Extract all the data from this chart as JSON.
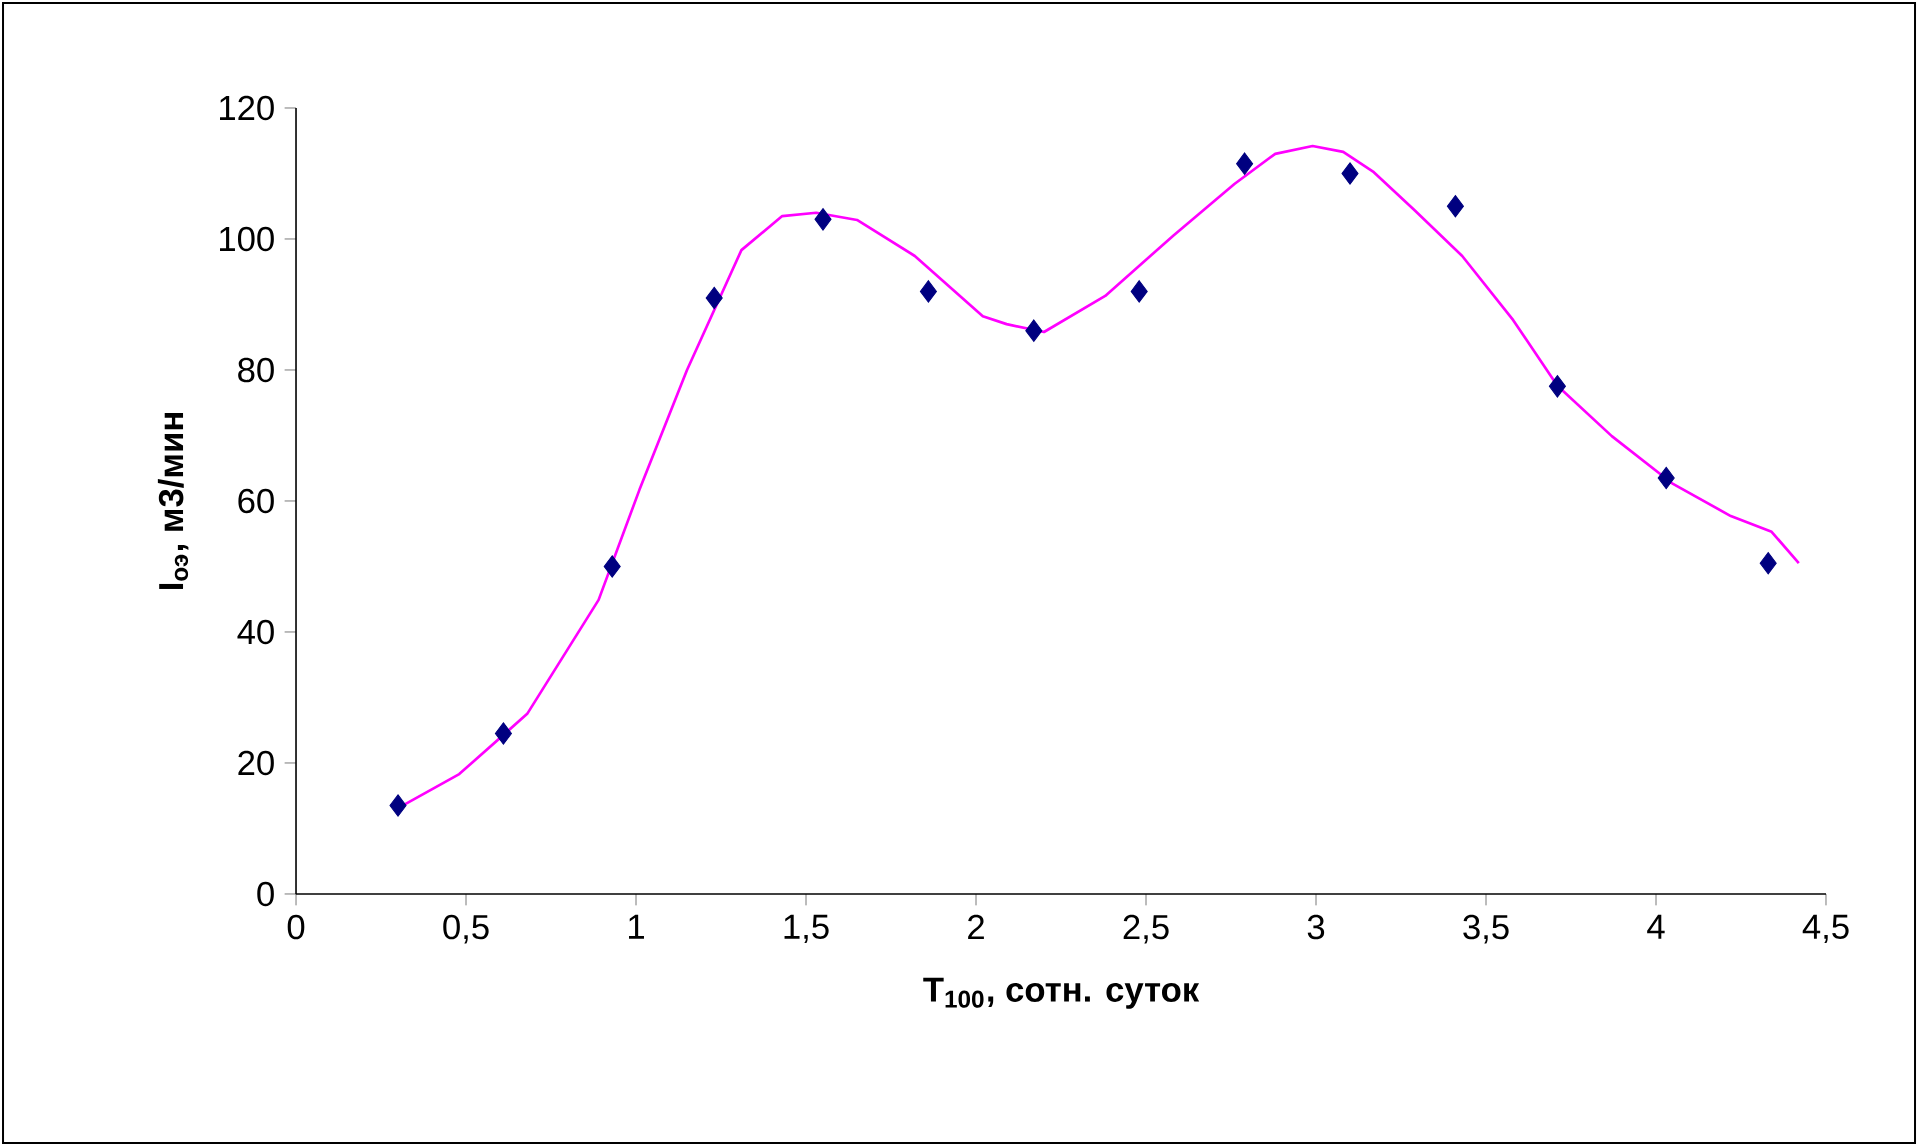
{
  "chart_data": {
    "type": "scatter",
    "xlabel": "T$_{100}$, сотн. суток",
    "ylabel": "I$_{оэ}$, м3/мин",
    "xlim": [
      0,
      4.5
    ],
    "ylim": [
      0,
      120
    ],
    "xticks": [
      0,
      {
        "value": 0.5,
        "label": "0,5"
      },
      1,
      {
        "value": 1.5,
        "label": "1,5"
      },
      2,
      {
        "value": 2.5,
        "label": "2,5"
      },
      3,
      {
        "value": 3.5,
        "label": "3,5"
      },
      4,
      {
        "value": 4.5,
        "label": "4,5"
      }
    ],
    "yticks": [
      0,
      20,
      40,
      60,
      80,
      100,
      120
    ],
    "grid": false,
    "series": [
      {
        "color": "#000080",
        "marker": "diamond",
        "x": [
          0.3,
          0.61,
          0.93,
          1.23,
          1.55,
          1.86,
          2.17,
          2.48,
          2.79,
          3.1,
          3.41,
          3.71,
          4.03,
          4.33
        ],
        "values": [
          13.5,
          24.5,
          50,
          91,
          103,
          92,
          86,
          92,
          111.5,
          110,
          105,
          77.5,
          63.5,
          50.5
        ]
      },
      {
        "type": "line",
        "color": "#ff00ff",
        "marker": "none",
        "line_style": "solid",
        "x": [
          0.3,
          0.48,
          0.68,
          0.89,
          1.01,
          1.15,
          1.31,
          1.43,
          1.53,
          1.65,
          1.82,
          2.02,
          2.09,
          2.2,
          2.38,
          2.58,
          2.76,
          2.88,
          2.99,
          3.08,
          3.17,
          3.29,
          3.43,
          3.58,
          3.71,
          3.87,
          4.05,
          4.22,
          4.34,
          4.42
        ],
        "values": [
          13.1,
          18.3,
          27.5,
          44.9,
          61.7,
          80,
          98.3,
          103.5,
          104,
          102.9,
          97.4,
          88.2,
          87,
          85.8,
          91.3,
          100.5,
          108.4,
          113,
          114.2,
          113.3,
          110.2,
          104.4,
          97.4,
          87.6,
          77.6,
          69.9,
          62.6,
          57.7,
          55.3,
          50.5
        ]
      }
    ]
  }
}
